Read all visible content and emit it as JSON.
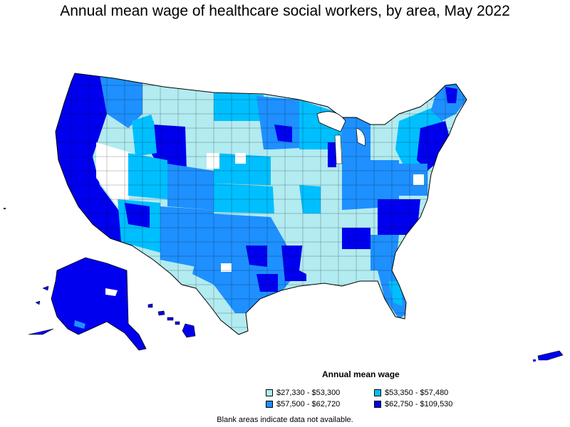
{
  "title": "Annual mean wage of healthcare social workers, by area, May 2022",
  "legend": {
    "title": "Annual mean wage",
    "items": [
      {
        "label": "$27,330 - $53,300",
        "color": "#b2ebf0"
      },
      {
        "label": "$53,350 - $57,480",
        "color": "#00bfff"
      },
      {
        "label": "$57,500 - $62,720",
        "color": "#1e90ff"
      },
      {
        "label": "$62,750 - $109,530",
        "color": "#0000ee"
      }
    ]
  },
  "note": "Blank areas indicate data not available.",
  "colors": {
    "tier1": "#b2ebf0",
    "tier2": "#00bfff",
    "tier3": "#1e90ff",
    "tier4": "#0000ee",
    "border": "#000000",
    "blank": "#ffffff"
  }
}
